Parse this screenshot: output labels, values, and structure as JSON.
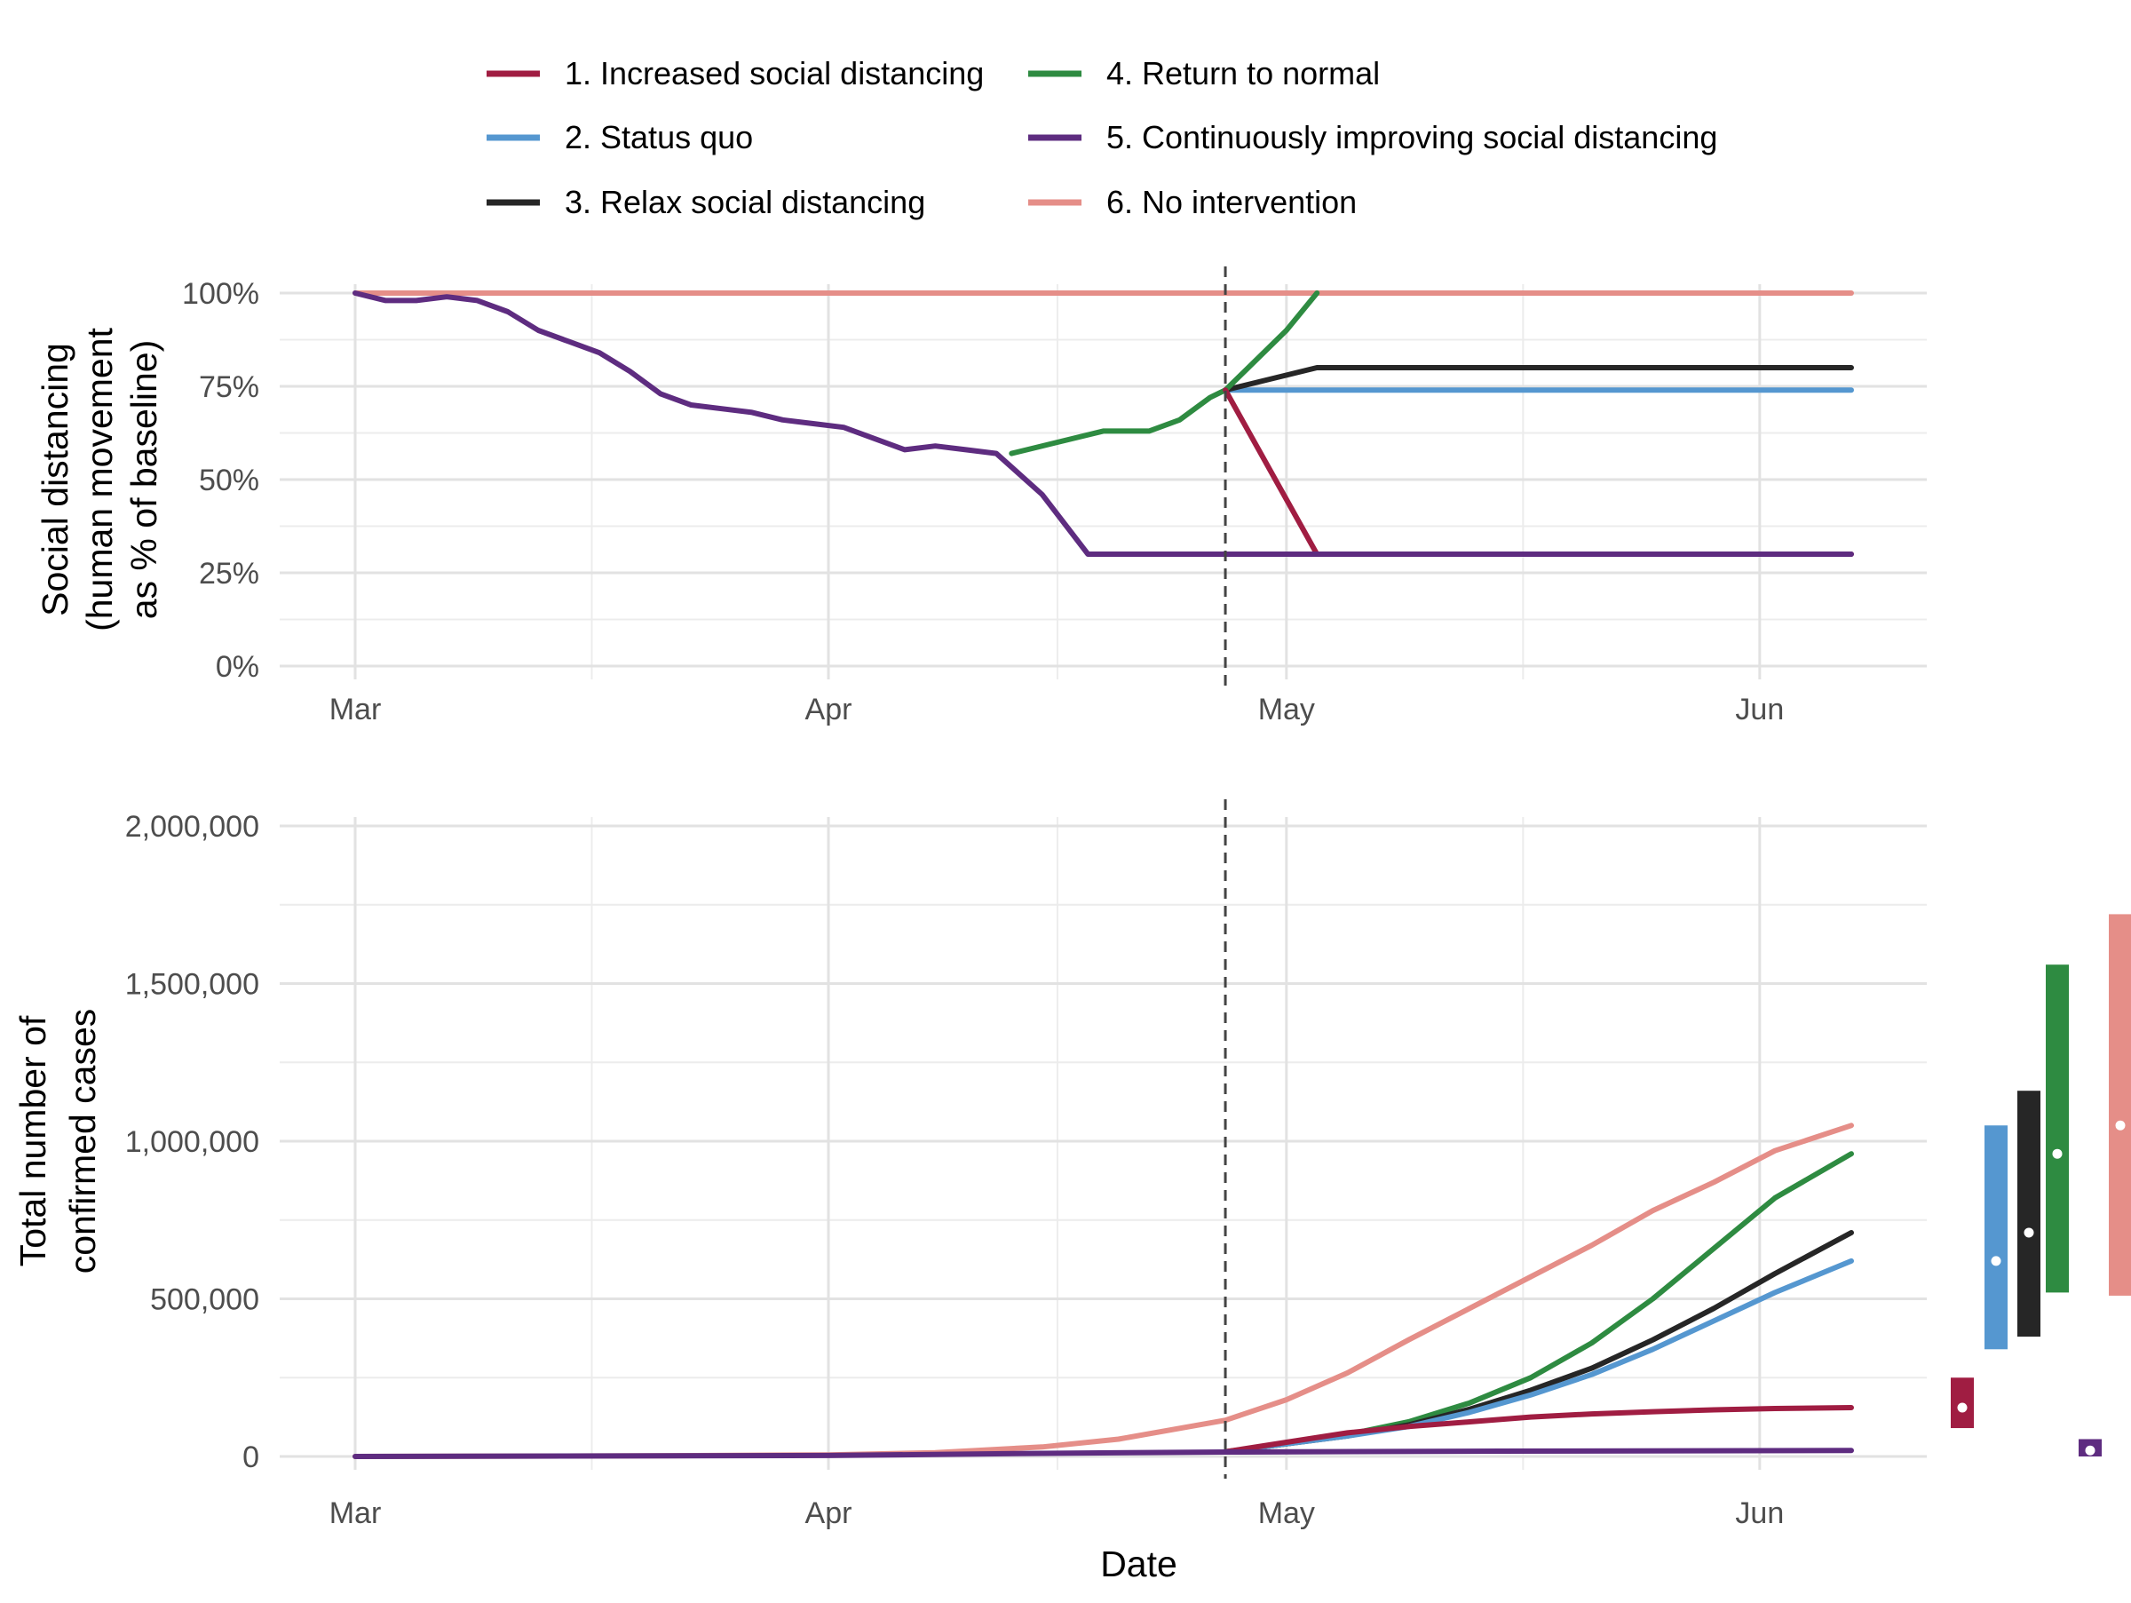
{
  "chart_data": [
    {
      "panel": "top",
      "type": "line",
      "ylabel_lines": [
        "Social distancing",
        "(human movement",
        "as % of baseline)"
      ],
      "ylim": [
        0,
        1
      ],
      "yticks": [
        0,
        0.25,
        0.5,
        0.75,
        1.0
      ],
      "ytick_labels": [
        "0%",
        "25%",
        "50%",
        "75%",
        "100%"
      ],
      "xlim": [
        "2020-03-01",
        "2020-06-07"
      ],
      "xticks": [
        "2020-03-01",
        "2020-04-01",
        "2020-05-01",
        "2020-06-01"
      ],
      "xtick_labels": [
        "Mar",
        "Apr",
        "May",
        "Jun"
      ],
      "vline": "2020-04-27",
      "grid": true,
      "series": [
        {
          "name": "6. No intervention",
          "color": "#E58E88",
          "points": [
            [
              "2020-03-01",
              1.0
            ],
            [
              "2020-06-07",
              1.0
            ]
          ]
        },
        {
          "name": "2. Status quo",
          "color": "#5597D0",
          "points": [
            [
              "2020-04-27",
              0.74
            ],
            [
              "2020-06-07",
              0.74
            ]
          ]
        },
        {
          "name": "3. Relax social distancing",
          "color": "#262626",
          "points": [
            [
              "2020-04-27",
              0.74
            ],
            [
              "2020-05-03",
              0.8
            ],
            [
              "2020-06-07",
              0.8
            ]
          ]
        },
        {
          "name": "4. Return to normal",
          "color": "#2E8B41",
          "points": [
            [
              "2020-04-13",
              0.57
            ],
            [
              "2020-04-16",
              0.6
            ],
            [
              "2020-04-19",
              0.63
            ],
            [
              "2020-04-22",
              0.63
            ],
            [
              "2020-04-24",
              0.66
            ],
            [
              "2020-04-26",
              0.72
            ],
            [
              "2020-04-27",
              0.74
            ],
            [
              "2020-05-01",
              0.9
            ],
            [
              "2020-05-03",
              1.0
            ]
          ]
        },
        {
          "name": "1. Increased social distancing",
          "color": "#A01D42",
          "points": [
            [
              "2020-04-27",
              0.74
            ],
            [
              "2020-05-03",
              0.3
            ],
            [
              "2020-06-07",
              0.3
            ]
          ]
        },
        {
          "name": "5. Continuously improving social distancing",
          "color": "#5E2C80",
          "points": [
            [
              "2020-03-01",
              1.0
            ],
            [
              "2020-03-03",
              0.98
            ],
            [
              "2020-03-05",
              0.98
            ],
            [
              "2020-03-07",
              0.99
            ],
            [
              "2020-03-09",
              0.98
            ],
            [
              "2020-03-11",
              0.95
            ],
            [
              "2020-03-13",
              0.9
            ],
            [
              "2020-03-15",
              0.87
            ],
            [
              "2020-03-17",
              0.84
            ],
            [
              "2020-03-19",
              0.79
            ],
            [
              "2020-03-21",
              0.73
            ],
            [
              "2020-03-23",
              0.7
            ],
            [
              "2020-03-25",
              0.69
            ],
            [
              "2020-03-27",
              0.68
            ],
            [
              "2020-03-29",
              0.66
            ],
            [
              "2020-03-31",
              0.65
            ],
            [
              "2020-04-02",
              0.64
            ],
            [
              "2020-04-04",
              0.61
            ],
            [
              "2020-04-06",
              0.58
            ],
            [
              "2020-04-08",
              0.59
            ],
            [
              "2020-04-10",
              0.58
            ],
            [
              "2020-04-12",
              0.57
            ],
            [
              "2020-04-15",
              0.46
            ],
            [
              "2020-04-18",
              0.3
            ],
            [
              "2020-06-07",
              0.3
            ]
          ]
        }
      ]
    },
    {
      "panel": "bottom",
      "type": "line",
      "xlabel": "Date",
      "ylabel_lines": [
        "Total number of",
        "confirmed cases"
      ],
      "ylim": [
        0,
        2000000
      ],
      "yticks": [
        0,
        500000,
        1000000,
        1500000,
        2000000
      ],
      "ytick_labels": [
        "0",
        "500,000",
        "1,000,000",
        "1,500,000",
        "2,000,000"
      ],
      "xlim": [
        "2020-03-01",
        "2020-06-07"
      ],
      "xticks": [
        "2020-03-01",
        "2020-04-01",
        "2020-05-01",
        "2020-06-01"
      ],
      "xtick_labels": [
        "Mar",
        "Apr",
        "May",
        "Jun"
      ],
      "vline": "2020-04-27",
      "grid": true,
      "series": [
        {
          "name": "6. No intervention",
          "color": "#E58E88",
          "points": [
            [
              "2020-03-01",
              0
            ],
            [
              "2020-03-20",
              2000
            ],
            [
              "2020-04-01",
              5000
            ],
            [
              "2020-04-08",
              12000
            ],
            [
              "2020-04-15",
              30000
            ],
            [
              "2020-04-20",
              55000
            ],
            [
              "2020-04-27",
              115000
            ],
            [
              "2020-05-01",
              180000
            ],
            [
              "2020-05-05",
              265000
            ],
            [
              "2020-05-09",
              370000
            ],
            [
              "2020-05-13",
              470000
            ],
            [
              "2020-05-17",
              570000
            ],
            [
              "2020-05-21",
              670000
            ],
            [
              "2020-05-25",
              780000
            ],
            [
              "2020-05-29",
              870000
            ],
            [
              "2020-06-02",
              970000
            ],
            [
              "2020-06-07",
              1050000
            ]
          ]
        },
        {
          "name": "4. Return to normal",
          "color": "#2E8B41",
          "points": [
            [
              "2020-04-27",
              15000
            ],
            [
              "2020-05-01",
              40000
            ],
            [
              "2020-05-05",
              70000
            ],
            [
              "2020-05-09",
              110000
            ],
            [
              "2020-05-13",
              170000
            ],
            [
              "2020-05-17",
              250000
            ],
            [
              "2020-05-21",
              360000
            ],
            [
              "2020-05-25",
              500000
            ],
            [
              "2020-05-29",
              660000
            ],
            [
              "2020-06-02",
              820000
            ],
            [
              "2020-06-07",
              960000
            ]
          ]
        },
        {
          "name": "3. Relax social distancing",
          "color": "#262626",
          "points": [
            [
              "2020-04-27",
              15000
            ],
            [
              "2020-05-01",
              40000
            ],
            [
              "2020-05-05",
              65000
            ],
            [
              "2020-05-09",
              100000
            ],
            [
              "2020-05-13",
              150000
            ],
            [
              "2020-05-17",
              210000
            ],
            [
              "2020-05-21",
              280000
            ],
            [
              "2020-05-25",
              370000
            ],
            [
              "2020-05-29",
              470000
            ],
            [
              "2020-06-02",
              580000
            ],
            [
              "2020-06-07",
              710000
            ]
          ]
        },
        {
          "name": "2. Status quo",
          "color": "#5597D0",
          "points": [
            [
              "2020-04-27",
              15000
            ],
            [
              "2020-05-01",
              40000
            ],
            [
              "2020-05-05",
              65000
            ],
            [
              "2020-05-09",
              95000
            ],
            [
              "2020-05-13",
              140000
            ],
            [
              "2020-05-17",
              195000
            ],
            [
              "2020-05-21",
              260000
            ],
            [
              "2020-05-25",
              340000
            ],
            [
              "2020-05-29",
              430000
            ],
            [
              "2020-06-02",
              520000
            ],
            [
              "2020-06-07",
              620000
            ]
          ]
        },
        {
          "name": "1. Increased social distancing",
          "color": "#A01D42",
          "points": [
            [
              "2020-04-27",
              15000
            ],
            [
              "2020-05-01",
              45000
            ],
            [
              "2020-05-05",
              75000
            ],
            [
              "2020-05-09",
              95000
            ],
            [
              "2020-05-13",
              110000
            ],
            [
              "2020-05-17",
              125000
            ],
            [
              "2020-05-21",
              135000
            ],
            [
              "2020-05-25",
              142000
            ],
            [
              "2020-05-29",
              148000
            ],
            [
              "2020-06-02",
              152000
            ],
            [
              "2020-06-07",
              155000
            ]
          ]
        },
        {
          "name": "5. Continuously improving social distancing",
          "color": "#5E2C80",
          "points": [
            [
              "2020-03-01",
              0
            ],
            [
              "2020-04-01",
              3000
            ],
            [
              "2020-04-15",
              10000
            ],
            [
              "2020-04-27",
              14000
            ],
            [
              "2020-05-15",
              17000
            ],
            [
              "2020-06-07",
              19000
            ]
          ]
        }
      ],
      "intervals": [
        {
          "name": "1. Increased social distancing",
          "color": "#A01D42",
          "low": 90000,
          "high": 250000,
          "mid": 155000
        },
        {
          "name": "2. Status quo",
          "color": "#5597D0",
          "low": 340000,
          "high": 1050000,
          "mid": 620000
        },
        {
          "name": "3. Relax social distancing",
          "color": "#262626",
          "low": 380000,
          "high": 1160000,
          "mid": 710000
        },
        {
          "name": "4. Return to normal",
          "color": "#2E8B41",
          "low": 520000,
          "high": 1560000,
          "mid": 960000
        },
        {
          "name": "5. Continuously improving social distancing",
          "color": "#5E2C80",
          "low": 0,
          "high": 55000,
          "mid": 19000
        },
        {
          "name": "6. No intervention",
          "color": "#E58E88",
          "low": 510000,
          "high": 1720000,
          "mid": 1050000
        }
      ]
    }
  ],
  "legend": {
    "items": [
      {
        "label": "1. Increased social distancing",
        "color": "#A01D42"
      },
      {
        "label": "2. Status quo",
        "color": "#5597D0"
      },
      {
        "label": "3. Relax social distancing",
        "color": "#262626"
      },
      {
        "label": "4. Return to normal",
        "color": "#2E8B41"
      },
      {
        "label": "5. Continuously improving social distancing",
        "color": "#5E2C80"
      },
      {
        "label": "6. No intervention",
        "color": "#E58E88"
      }
    ]
  }
}
